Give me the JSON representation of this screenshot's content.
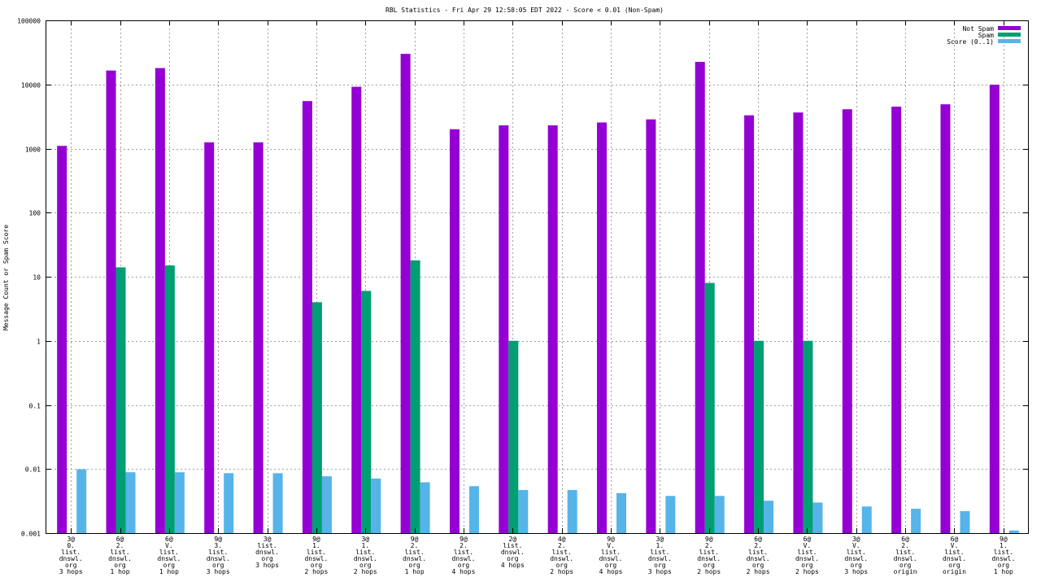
{
  "chart_data": {
    "type": "bar",
    "title": "RBL Statistics - Fri Apr 29 12:58:05 EDT 2022 - Score < 0.01 (Non-Spam)",
    "ylabel": "Message Count or Spam Score",
    "xlabel": "",
    "yscale": "log",
    "ylim": [
      0.001,
      100000
    ],
    "yticks": [
      {
        "value": 100000,
        "label": "100000"
      },
      {
        "value": 10000,
        "label": "10000"
      },
      {
        "value": 1000,
        "label": "1000"
      },
      {
        "value": 100,
        "label": "100"
      },
      {
        "value": 10,
        "label": "10"
      },
      {
        "value": 1,
        "label": "1"
      },
      {
        "value": 0.1,
        "label": "0.1"
      },
      {
        "value": 0.01,
        "label": "0.01"
      },
      {
        "value": 0.001,
        "label": "0.001"
      }
    ],
    "grid": true,
    "legend_position": "top-right",
    "categories": [
      [
        "3@",
        "0.",
        "list.",
        "dnswl.",
        "org",
        "3 hops"
      ],
      [
        "6@",
        "2.",
        "list.",
        "dnswl.",
        "org",
        "1 hop"
      ],
      [
        "6@",
        "V.",
        "list.",
        "dnswl.",
        "org",
        "1 hop"
      ],
      [
        "9@",
        "3.",
        "list.",
        "dnswl.",
        "org",
        "3 hops"
      ],
      [
        "3@",
        "list.",
        "dnswl.",
        "org",
        "3 hops"
      ],
      [
        "9@",
        "1.",
        "list.",
        "dnswl.",
        "org",
        "2 hops"
      ],
      [
        "3@",
        "1.",
        "list.",
        "dnswl.",
        "org",
        "2 hops"
      ],
      [
        "9@",
        "2.",
        "list.",
        "dnswl.",
        "org",
        "1 hop"
      ],
      [
        "9@",
        "2.",
        "list.",
        "dnswl.",
        "org",
        "4 hops"
      ],
      [
        "2@",
        "list.",
        "dnswl.",
        "org",
        "4 hops"
      ],
      [
        "4@",
        "2.",
        "list.",
        "dnswl.",
        "org",
        "2 hops"
      ],
      [
        "9@",
        "V.",
        "list.",
        "dnswl.",
        "org",
        "4 hops"
      ],
      [
        "3@",
        "1.",
        "list.",
        "dnswl.",
        "org",
        "3 hops"
      ],
      [
        "9@",
        "2.",
        "list.",
        "dnswl.",
        "org",
        "2 hops"
      ],
      [
        "6@",
        "2.",
        "list.",
        "dnswl.",
        "org",
        "2 hops"
      ],
      [
        "6@",
        "V.",
        "list.",
        "dnswl.",
        "org",
        "2 hops"
      ],
      [
        "3@",
        "V.",
        "list.",
        "dnswl.",
        "org",
        "3 hops"
      ],
      [
        "6@",
        "2.",
        "list.",
        "dnswl.",
        "org",
        "origin"
      ],
      [
        "6@",
        "V.",
        "list.",
        "dnswl.",
        "org",
        "origin"
      ],
      [
        "9@",
        "1.",
        "list.",
        "dnswl.",
        "org",
        "1 hop"
      ]
    ],
    "series": [
      {
        "name": "Not Spam",
        "color": "#9400d3",
        "values": [
          1100,
          16500,
          18000,
          1250,
          1250,
          5500,
          9200,
          30000,
          2000,
          2300,
          2300,
          2550,
          2850,
          22500,
          3300,
          3650,
          4100,
          4500,
          4900,
          9900
        ]
      },
      {
        "name": "Spam",
        "color": "#009e73",
        "values": [
          null,
          14,
          15,
          null,
          null,
          4,
          6,
          18,
          null,
          1,
          null,
          null,
          null,
          8,
          1,
          1,
          null,
          null,
          null,
          null
        ]
      },
      {
        "name": "Score (0..1)",
        "color": "#56b4e9",
        "values": [
          0.0099,
          0.0089,
          0.0089,
          0.0086,
          0.0086,
          0.0077,
          0.0071,
          0.0062,
          0.0054,
          0.0047,
          0.0047,
          0.0042,
          0.0038,
          0.0038,
          0.0032,
          0.003,
          0.0026,
          0.0024,
          0.0022,
          0.0011
        ]
      }
    ]
  }
}
